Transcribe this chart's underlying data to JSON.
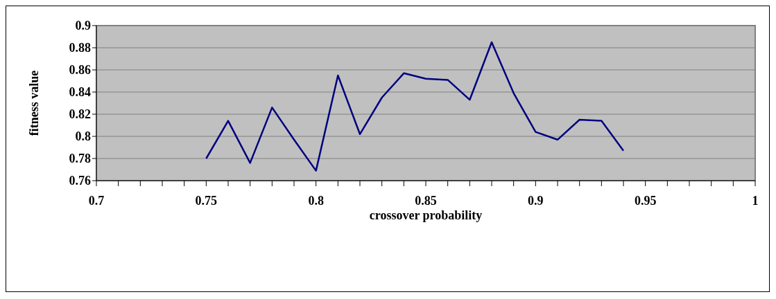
{
  "chart_data": {
    "type": "line",
    "xlabel": "crossover probability",
    "ylabel": "fitness value",
    "x": [
      0.75,
      0.76,
      0.77,
      0.78,
      0.79,
      0.8,
      0.81,
      0.82,
      0.83,
      0.84,
      0.85,
      0.86,
      0.87,
      0.88,
      0.89,
      0.9,
      0.91,
      0.92,
      0.93,
      0.94
    ],
    "series": [
      {
        "color": "#000080",
        "values": [
          0.78,
          0.814,
          0.776,
          0.826,
          0.797,
          0.769,
          0.855,
          0.802,
          0.835,
          0.857,
          0.852,
          0.851,
          0.833,
          0.885,
          0.839,
          0.804,
          0.797,
          0.815,
          0.814,
          0.787
        ]
      }
    ],
    "xlim": [
      0.7,
      1
    ],
    "ylim": [
      0.76,
      0.9
    ],
    "xticks": [
      0.7,
      {
        "value": 0.71,
        "label": null
      },
      {
        "value": 0.72,
        "label": null
      },
      {
        "value": 0.73,
        "label": null
      },
      {
        "value": 0.74,
        "label": null
      },
      0.75,
      {
        "value": 0.76,
        "label": null
      },
      {
        "value": 0.77,
        "label": null
      },
      {
        "value": 0.78,
        "label": null
      },
      {
        "value": 0.79,
        "label": null
      },
      0.8,
      {
        "value": 0.81,
        "label": null
      },
      {
        "value": 0.82,
        "label": null
      },
      {
        "value": 0.83,
        "label": null
      },
      {
        "value": 0.84,
        "label": null
      },
      0.85,
      {
        "value": 0.86,
        "label": null
      },
      {
        "value": 0.87,
        "label": null
      },
      {
        "value": 0.88,
        "label": null
      },
      {
        "value": 0.89,
        "label": null
      },
      0.9,
      {
        "value": 0.91,
        "label": null
      },
      {
        "value": 0.92,
        "label": null
      },
      {
        "value": 0.93,
        "label": null
      },
      {
        "value": 0.94,
        "label": null
      },
      0.95,
      {
        "value": 0.96,
        "label": null
      },
      {
        "value": 0.97,
        "label": null
      },
      {
        "value": 0.98,
        "label": null
      },
      {
        "value": 0.99,
        "label": null
      },
      1
    ],
    "yticks": [
      0.76,
      0.78,
      0.8,
      0.82,
      0.84,
      0.86,
      0.88,
      0.9
    ],
    "grid": "y",
    "legend": false,
    "marker": "none",
    "line_style": "solid"
  }
}
